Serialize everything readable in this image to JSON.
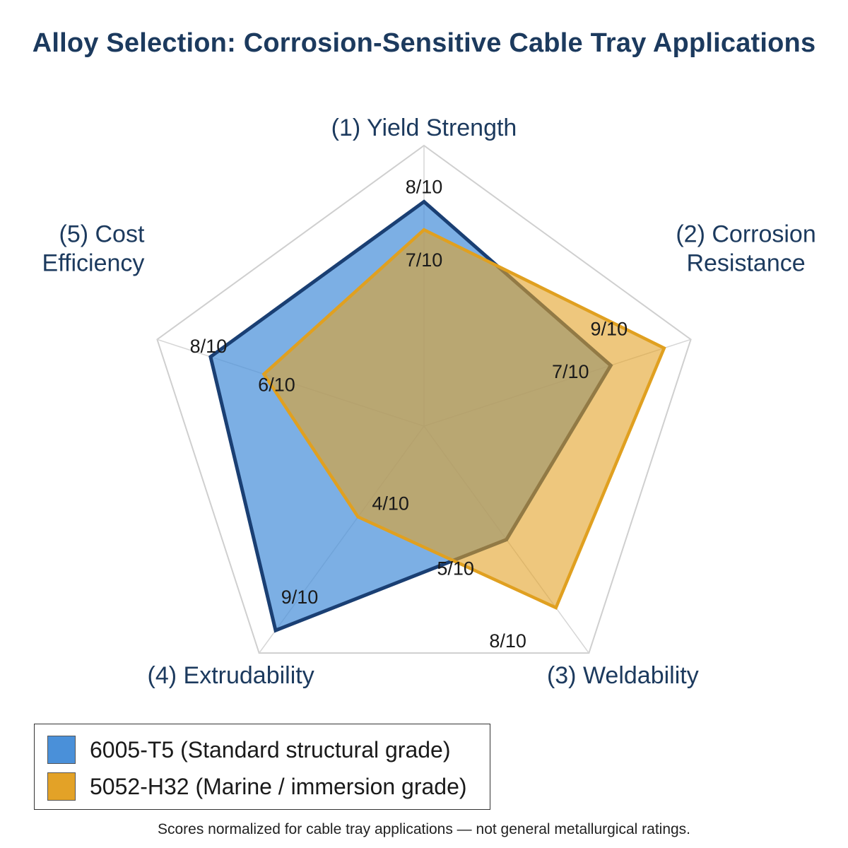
{
  "chart_data": {
    "type": "radar",
    "title": "Alloy Selection: Corrosion-Sensitive Cable Tray Applications",
    "axes": [
      "(1) Yield Strength",
      "(2) Corrosion Resistance",
      "(3) Weldability",
      "(4) Extrudability",
      "(5) Cost Efficiency"
    ],
    "axis_label_lines": [
      [
        "(1) Yield Strength"
      ],
      [
        "(2) Corrosion",
        "Resistance"
      ],
      [
        "(3) Weldability"
      ],
      [
        "(4) Extrudability"
      ],
      [
        "(5) Cost",
        "Efficiency"
      ]
    ],
    "max": 10,
    "grid": "outer pentagon only with spokes",
    "legend_position": "bottom-left",
    "series": [
      {
        "name": "6005-T5 (Standard structural grade)",
        "values": [
          8,
          7,
          5,
          9,
          8
        ],
        "labels": [
          "8/10",
          "7/10",
          "5/10",
          "9/10",
          "8/10"
        ],
        "fill": "#4a90d9",
        "stroke": "#1a3f73"
      },
      {
        "name": "5052-H32 (Marine / immersion grade)",
        "values": [
          7,
          9,
          8,
          4,
          6
        ],
        "labels": [
          "7/10",
          "9/10",
          "8/10",
          "4/10",
          "6/10"
        ],
        "fill": "#e3a227",
        "stroke": "#e0a020"
      }
    ],
    "footnote": "Scores normalized for cable tray applications — not general metallurgical ratings."
  }
}
